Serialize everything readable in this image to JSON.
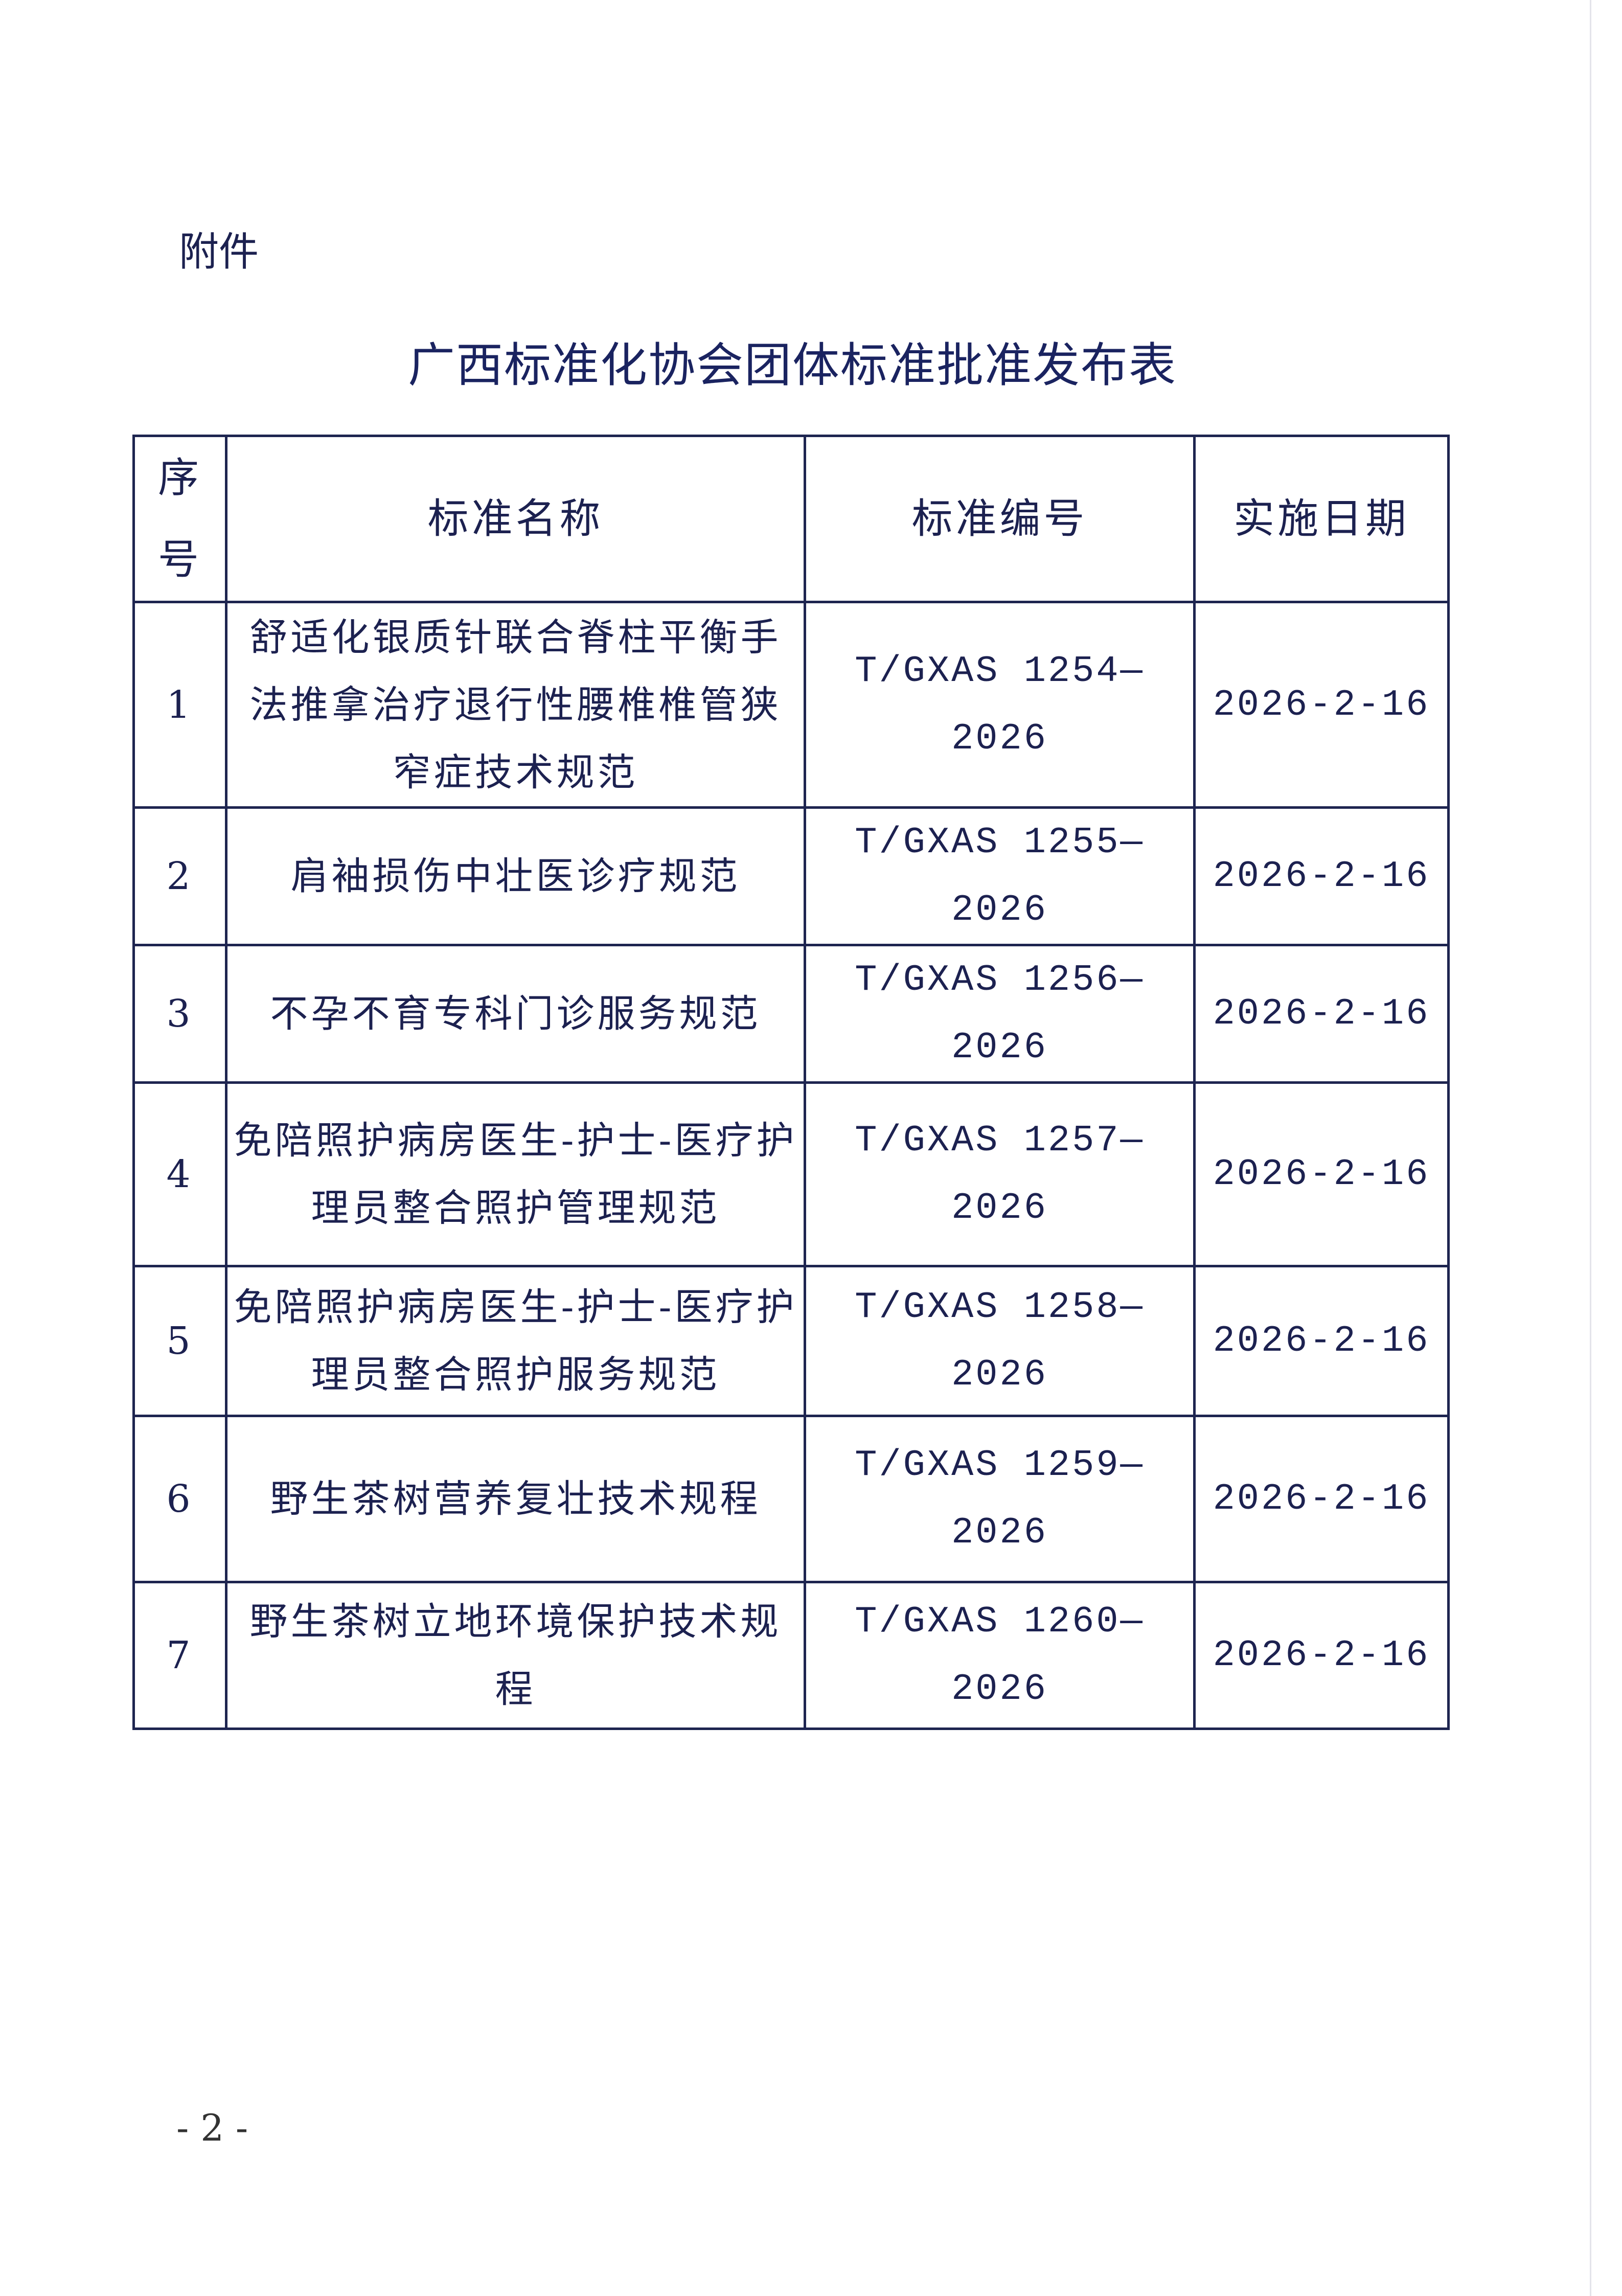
{
  "attachment_label": "附件",
  "title": "广西标准化协会团体标准批准发布表",
  "table": {
    "headers": {
      "seq": "序号",
      "name": "标准名称",
      "code": "标准编号",
      "date": "实施日期"
    },
    "rows": [
      {
        "seq": "1",
        "name": "舒适化银质针联合脊柱平衡手法推拿治疗退行性腰椎椎管狭窄症技术规范",
        "code": "T/GXAS 1254—2026",
        "date": "2026-2-16"
      },
      {
        "seq": "2",
        "name": "肩袖损伤中壮医诊疗规范",
        "code": "T/GXAS 1255—2026",
        "date": "2026-2-16"
      },
      {
        "seq": "3",
        "name": "不孕不育专科门诊服务规范",
        "code": "T/GXAS 1256—2026",
        "date": "2026-2-16"
      },
      {
        "seq": "4",
        "name": "免陪照护病房医生-护士-医疗护理员整合照护管理规范",
        "code": "T/GXAS 1257—2026",
        "date": "2026-2-16"
      },
      {
        "seq": "5",
        "name": "免陪照护病房医生-护士-医疗护理员整合照护服务规范",
        "code": "T/GXAS 1258—2026",
        "date": "2026-2-16"
      },
      {
        "seq": "6",
        "name": "野生茶树营养复壮技术规程",
        "code": "T/GXAS 1259—2026",
        "date": "2026-2-16"
      },
      {
        "seq": "7",
        "name": "野生茶树立地环境保护技术规程",
        "code": "T/GXAS 1260—2026",
        "date": "2026-2-16"
      }
    ]
  },
  "page_number": "- 2 -"
}
